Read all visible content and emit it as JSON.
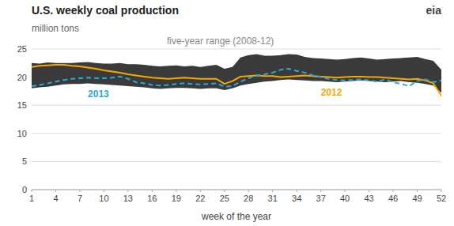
{
  "chart_data": {
    "type": "line",
    "title": "U.S. weekly coal production",
    "ylabel": "million tons",
    "xlabel": "week of the year",
    "annotations": [
      "eia"
    ],
    "grid": true,
    "xlim": [
      1,
      52
    ],
    "ylim": [
      0,
      25
    ],
    "yticks": [
      0,
      5,
      10,
      15,
      20,
      25
    ],
    "xticks": [
      1,
      4,
      7,
      10,
      13,
      16,
      19,
      22,
      25,
      28,
      31,
      34,
      37,
      40,
      43,
      46,
      49,
      52
    ],
    "x": [
      1,
      2,
      3,
      4,
      5,
      6,
      7,
      8,
      9,
      10,
      11,
      12,
      13,
      14,
      15,
      16,
      17,
      18,
      19,
      20,
      21,
      22,
      23,
      24,
      25,
      26,
      27,
      28,
      29,
      30,
      31,
      32,
      33,
      34,
      35,
      36,
      37,
      38,
      39,
      40,
      41,
      42,
      43,
      44,
      45,
      46,
      47,
      48,
      49,
      50,
      51,
      52
    ],
    "series": [
      {
        "name": "five-year range (2008-12)",
        "type": "range",
        "color": "#3a3a3a",
        "upper": [
          22.5,
          22.4,
          22.6,
          22.5,
          22.5,
          22.5,
          22.6,
          22.7,
          22.5,
          22.4,
          22.4,
          22.5,
          22.3,
          22.3,
          22.2,
          22.0,
          21.9,
          22.0,
          22.1,
          21.9,
          22.0,
          21.8,
          22.0,
          22.2,
          21.5,
          21.8,
          23.5,
          23.9,
          24.1,
          23.8,
          23.8,
          23.9,
          24.1,
          24.0,
          23.6,
          23.4,
          23.3,
          23.2,
          23.1,
          23.2,
          23.4,
          23.5,
          23.3,
          23.1,
          23.2,
          23.3,
          23.4,
          23.5,
          23.6,
          23.2,
          22.9,
          21.3
        ],
        "lower": [
          18.0,
          18.2,
          18.3,
          18.5,
          18.7,
          18.8,
          18.8,
          18.9,
          18.8,
          18.7,
          18.6,
          18.5,
          18.4,
          18.3,
          18.2,
          18.0,
          17.9,
          18.0,
          18.1,
          18.1,
          18.0,
          17.9,
          18.0,
          18.0,
          17.7,
          18.0,
          18.5,
          18.8,
          19.0,
          19.2,
          19.3,
          19.5,
          19.6,
          19.5,
          19.4,
          19.3,
          19.3,
          19.2,
          19.1,
          19.2,
          19.3,
          19.4,
          19.3,
          19.2,
          19.1,
          19.2,
          19.3,
          19.1,
          19.0,
          18.8,
          18.5,
          17.2
        ]
      },
      {
        "name": "2012",
        "type": "line",
        "color": "#f5a800",
        "line_style": "solid",
        "values": [
          21.8,
          22.0,
          22.1,
          22.2,
          22.2,
          22.0,
          21.9,
          21.7,
          21.5,
          21.2,
          21.0,
          20.8,
          20.5,
          20.3,
          20.1,
          19.9,
          19.8,
          19.7,
          19.8,
          19.9,
          19.8,
          19.7,
          19.7,
          19.7,
          18.8,
          19.3,
          20.1,
          20.2,
          20.3,
          20.2,
          20.2,
          20.0,
          20.1,
          20.2,
          20.3,
          20.2,
          20.1,
          20.0,
          19.9,
          20.0,
          20.1,
          20.1,
          20.0,
          20.0,
          19.9,
          19.8,
          19.7,
          19.6,
          19.7,
          19.4,
          18.9,
          16.7
        ]
      },
      {
        "name": "2013",
        "type": "line",
        "color": "#29a8e0",
        "line_style": "dashed",
        "values": [
          18.4,
          18.6,
          18.9,
          19.2,
          19.5,
          19.7,
          19.8,
          19.9,
          19.8,
          19.8,
          19.9,
          20.1,
          19.7,
          19.1,
          18.9,
          18.6,
          18.5,
          18.6,
          18.8,
          18.9,
          18.8,
          18.7,
          18.8,
          18.9,
          18.3,
          18.4,
          19.2,
          19.8,
          20.3,
          20.5,
          20.8,
          21.3,
          21.5,
          21.1,
          20.8,
          20.3,
          20.0,
          19.7,
          19.5,
          19.4,
          19.5,
          19.6,
          19.4,
          19.2,
          19.6,
          19.1,
          18.8,
          18.4,
          19.3,
          19.6,
          19.1,
          19.4
        ]
      }
    ]
  }
}
